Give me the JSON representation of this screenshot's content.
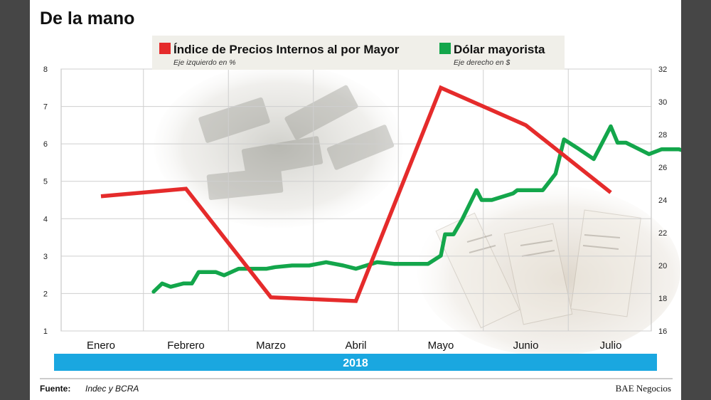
{
  "title": "De la mano",
  "source": {
    "label": "Fuente:",
    "value": "Indec y BCRA"
  },
  "credit": "BAE Negocios",
  "colors": {
    "ipim": "#e52b2b",
    "dolar": "#13a64b",
    "year_band": "#1aa7e0",
    "grid": "#cfcfcf"
  },
  "chart_data": {
    "type": "line",
    "x_categories": [
      "Enero",
      "Febrero",
      "Marzo",
      "Abril",
      "Mayo",
      "Junio",
      "Julio"
    ],
    "year_label": "2018",
    "grid": true,
    "legend_position": "top-center",
    "y_left": {
      "label": "Eje izquierdo en %",
      "ticks": [
        "1",
        "2",
        "3",
        "4",
        "5",
        "6",
        "7",
        "8"
      ],
      "range": [
        1,
        8
      ]
    },
    "y_right": {
      "label": "Eje derecho en $",
      "ticks": [
        "16",
        "18",
        "20",
        "22",
        "24",
        "26",
        "28",
        "30",
        "32"
      ],
      "range": [
        16,
        32
      ]
    },
    "series": [
      {
        "name": "Índice de Precios Internos al por Mayor",
        "axis": "left",
        "legend_sub": "Eje izquierdo en %",
        "points": [
          {
            "x": "Enero",
            "y": 4.6
          },
          {
            "x": "Febrero",
            "y": 4.8
          },
          {
            "x": "Marzo",
            "y": 1.9
          },
          {
            "x": "Abril",
            "y": 1.8
          },
          {
            "x": "Mayo",
            "y": 7.5
          },
          {
            "x": "Junio",
            "y": 6.5
          },
          {
            "x": "Julio",
            "y": 4.7
          }
        ]
      },
      {
        "name": "Dólar mayorista",
        "axis": "right",
        "legend_sub": "Eje derecho en $",
        "points": [
          {
            "x": 0.62,
            "y": 18.4
          },
          {
            "x": 0.72,
            "y": 18.9
          },
          {
            "x": 0.82,
            "y": 18.7
          },
          {
            "x": 0.97,
            "y": 18.9
          },
          {
            "x": 1.07,
            "y": 18.9
          },
          {
            "x": 1.15,
            "y": 19.6
          },
          {
            "x": 1.35,
            "y": 19.6
          },
          {
            "x": 1.45,
            "y": 19.4
          },
          {
            "x": 1.62,
            "y": 19.8
          },
          {
            "x": 1.95,
            "y": 19.8
          },
          {
            "x": 2.05,
            "y": 19.9
          },
          {
            "x": 2.25,
            "y": 20.0
          },
          {
            "x": 2.45,
            "y": 20.0
          },
          {
            "x": 2.65,
            "y": 20.2
          },
          {
            "x": 2.85,
            "y": 20.0
          },
          {
            "x": 3.0,
            "y": 19.8
          },
          {
            "x": 3.25,
            "y": 20.2
          },
          {
            "x": 3.45,
            "y": 20.1
          },
          {
            "x": 3.65,
            "y": 20.1
          },
          {
            "x": 3.85,
            "y": 20.1
          },
          {
            "x": 4.0,
            "y": 20.6
          },
          {
            "x": 4.05,
            "y": 21.9
          },
          {
            "x": 4.15,
            "y": 21.9
          },
          {
            "x": 4.25,
            "y": 22.8
          },
          {
            "x": 4.42,
            "y": 24.6
          },
          {
            "x": 4.48,
            "y": 24.0
          },
          {
            "x": 4.6,
            "y": 24.0
          },
          {
            "x": 4.85,
            "y": 24.4
          },
          {
            "x": 4.9,
            "y": 24.6
          },
          {
            "x": 5.2,
            "y": 24.6
          },
          {
            "x": 5.35,
            "y": 25.6
          },
          {
            "x": 5.45,
            "y": 27.7
          },
          {
            "x": 5.6,
            "y": 27.2
          },
          {
            "x": 5.8,
            "y": 26.5
          },
          {
            "x": 6.0,
            "y": 28.5
          },
          {
            "x": 6.08,
            "y": 27.5
          },
          {
            "x": 6.18,
            "y": 27.5
          },
          {
            "x": 6.45,
            "y": 26.8
          },
          {
            "x": 6.6,
            "y": 27.1
          },
          {
            "x": 6.8,
            "y": 27.1
          },
          {
            "x": 7.0,
            "y": 26.8
          },
          {
            "x": 7.2,
            "y": 27.0
          }
        ]
      }
    ]
  }
}
